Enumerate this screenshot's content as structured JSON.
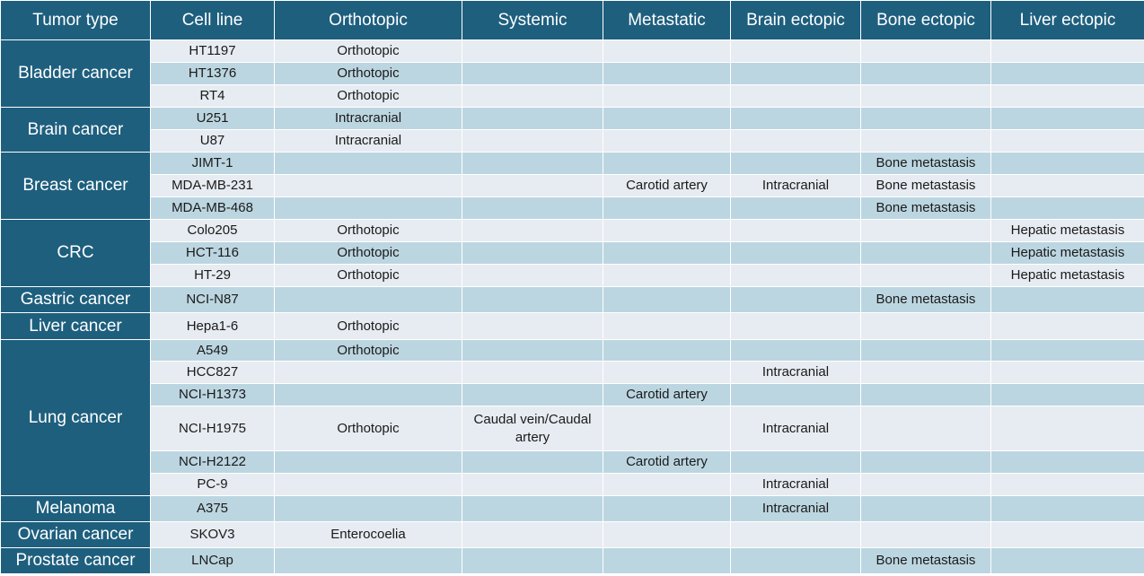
{
  "columns": [
    "Tumor type",
    "Cell line",
    "Orthotopic",
    "Systemic",
    "Metastatic",
    "Brain ectopic",
    "Bone ectopic",
    "Liver ectopic"
  ],
  "groups": [
    {
      "tumor": "Bladder cancer",
      "rows": [
        {
          "cell_line": "HT1197",
          "orthotopic": "Orthotopic",
          "systemic": "",
          "metastatic": "",
          "brain_ectopic": "",
          "bone_ectopic": "",
          "liver_ectopic": ""
        },
        {
          "cell_line": "HT1376",
          "orthotopic": "Orthotopic",
          "systemic": "",
          "metastatic": "",
          "brain_ectopic": "",
          "bone_ectopic": "",
          "liver_ectopic": ""
        },
        {
          "cell_line": "RT4",
          "orthotopic": "Orthotopic",
          "systemic": "",
          "metastatic": "",
          "brain_ectopic": "",
          "bone_ectopic": "",
          "liver_ectopic": ""
        }
      ]
    },
    {
      "tumor": "Brain cancer",
      "rows": [
        {
          "cell_line": "U251",
          "orthotopic": "Intracranial",
          "systemic": "",
          "metastatic": "",
          "brain_ectopic": "",
          "bone_ectopic": "",
          "liver_ectopic": ""
        },
        {
          "cell_line": "U87",
          "orthotopic": "Intracranial",
          "systemic": "",
          "metastatic": "",
          "brain_ectopic": "",
          "bone_ectopic": "",
          "liver_ectopic": ""
        }
      ]
    },
    {
      "tumor": "Breast cancer",
      "rows": [
        {
          "cell_line": "JIMT-1",
          "orthotopic": "",
          "systemic": "",
          "metastatic": "",
          "brain_ectopic": "",
          "bone_ectopic": "Bone metastasis",
          "liver_ectopic": ""
        },
        {
          "cell_line": "MDA-MB-231",
          "orthotopic": "",
          "systemic": "",
          "metastatic": "Carotid artery",
          "brain_ectopic": "Intracranial",
          "bone_ectopic": "Bone metastasis",
          "liver_ectopic": ""
        },
        {
          "cell_line": "MDA-MB-468",
          "orthotopic": "",
          "systemic": "",
          "metastatic": "",
          "brain_ectopic": "",
          "bone_ectopic": "Bone metastasis",
          "liver_ectopic": ""
        }
      ]
    },
    {
      "tumor": "CRC",
      "rows": [
        {
          "cell_line": "Colo205",
          "orthotopic": "Orthotopic",
          "systemic": "",
          "metastatic": "",
          "brain_ectopic": "",
          "bone_ectopic": "",
          "liver_ectopic": "Hepatic metastasis"
        },
        {
          "cell_line": "HCT-116",
          "orthotopic": "Orthotopic",
          "systemic": "",
          "metastatic": "",
          "brain_ectopic": "",
          "bone_ectopic": "",
          "liver_ectopic": "Hepatic metastasis"
        },
        {
          "cell_line": "HT-29",
          "orthotopic": "Orthotopic",
          "systemic": "",
          "metastatic": "",
          "brain_ectopic": "",
          "bone_ectopic": "",
          "liver_ectopic": "Hepatic metastasis"
        }
      ]
    },
    {
      "tumor": "Gastric cancer",
      "rows": [
        {
          "cell_line": "NCI-N87",
          "orthotopic": "",
          "systemic": "",
          "metastatic": "",
          "brain_ectopic": "",
          "bone_ectopic": "Bone metastasis",
          "liver_ectopic": ""
        }
      ]
    },
    {
      "tumor": "Liver cancer",
      "rows": [
        {
          "cell_line": "Hepa1-6",
          "orthotopic": "Orthotopic",
          "systemic": "",
          "metastatic": "",
          "brain_ectopic": "",
          "bone_ectopic": "",
          "liver_ectopic": ""
        }
      ]
    },
    {
      "tumor": "Lung cancer",
      "rows": [
        {
          "cell_line": "A549",
          "orthotopic": "Orthotopic",
          "systemic": "",
          "metastatic": "",
          "brain_ectopic": "",
          "bone_ectopic": "",
          "liver_ectopic": ""
        },
        {
          "cell_line": "HCC827",
          "orthotopic": "",
          "systemic": "",
          "metastatic": "",
          "brain_ectopic": "Intracranial",
          "bone_ectopic": "",
          "liver_ectopic": ""
        },
        {
          "cell_line": "NCI-H1373",
          "orthotopic": "",
          "systemic": "",
          "metastatic": "Carotid artery",
          "brain_ectopic": "",
          "bone_ectopic": "",
          "liver_ectopic": ""
        },
        {
          "cell_line": "NCI-H1975",
          "orthotopic": "Orthotopic",
          "systemic": "Caudal vein/Caudal artery",
          "metastatic": "",
          "brain_ectopic": "Intracranial",
          "bone_ectopic": "",
          "liver_ectopic": ""
        },
        {
          "cell_line": "NCI-H2122",
          "orthotopic": "",
          "systemic": "",
          "metastatic": "Carotid artery",
          "brain_ectopic": "",
          "bone_ectopic": "",
          "liver_ectopic": ""
        },
        {
          "cell_line": "PC-9",
          "orthotopic": "",
          "systemic": "",
          "metastatic": "",
          "brain_ectopic": "Intracranial",
          "bone_ectopic": "",
          "liver_ectopic": ""
        }
      ]
    },
    {
      "tumor": "Melanoma",
      "rows": [
        {
          "cell_line": "A375",
          "orthotopic": "",
          "systemic": "",
          "metastatic": "",
          "brain_ectopic": "Intracranial",
          "bone_ectopic": "",
          "liver_ectopic": ""
        }
      ]
    },
    {
      "tumor": "Ovarian cancer",
      "rows": [
        {
          "cell_line": "SKOV3",
          "orthotopic": "Enterocoelia",
          "systemic": "",
          "metastatic": "",
          "brain_ectopic": "",
          "bone_ectopic": "",
          "liver_ectopic": ""
        }
      ]
    },
    {
      "tumor": "Prostate cancer",
      "rows": [
        {
          "cell_line": "LNCap",
          "orthotopic": "",
          "systemic": "",
          "metastatic": "",
          "brain_ectopic": "",
          "bone_ectopic": "Bone metastasis",
          "liver_ectopic": ""
        }
      ]
    }
  ],
  "colors": {
    "header_bg": "#1e5f7e",
    "row_light": "#e7ecf2",
    "row_dark": "#bcd6e1",
    "header_text": "#ffffff"
  }
}
